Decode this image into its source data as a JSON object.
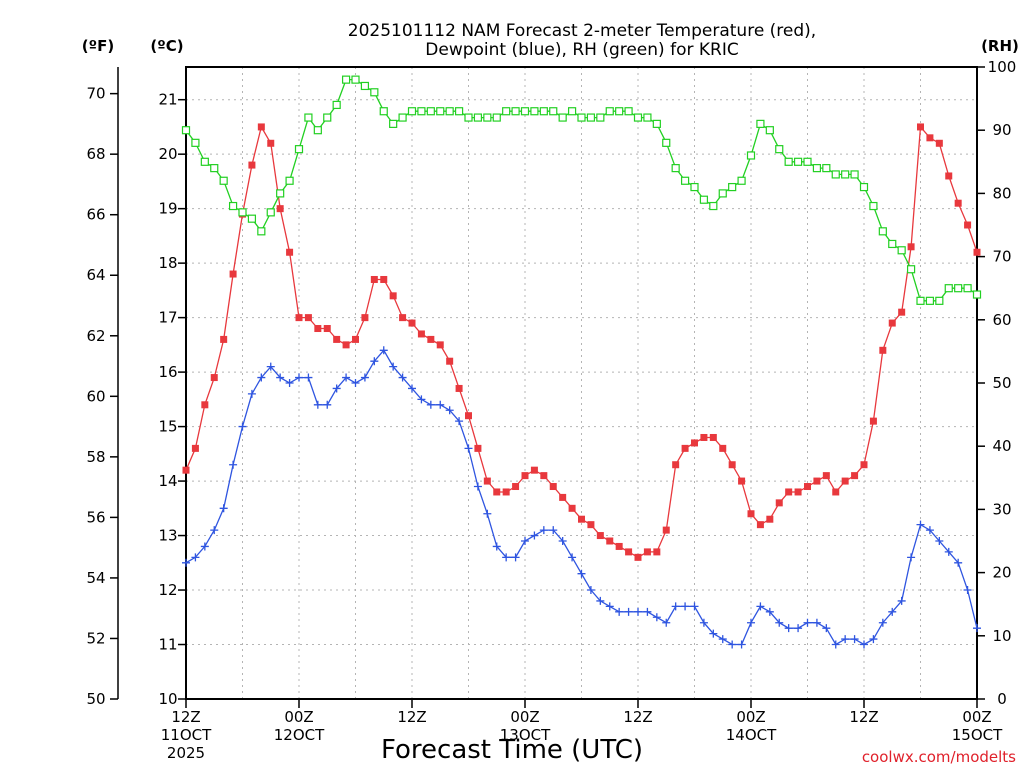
{
  "chart_data": {
    "type": "line",
    "title_lines": [
      "2025101112 NAM Forecast 2-meter Temperature (red),",
      "Dewpoint (blue), RH (green) for KRIC"
    ],
    "xlabel": "Forecast Time (UTC)",
    "credit": "coolwx.com/modelts",
    "units": {
      "f": "(ºF)",
      "c": "(ºC)",
      "rh": "(RH)"
    },
    "x_range_hours": [
      0,
      84
    ],
    "x_ticks": [
      {
        "hour": 0,
        "lines": [
          "12Z",
          "11OCT",
          "2025"
        ]
      },
      {
        "hour": 12,
        "lines": [
          "00Z",
          "12OCT"
        ]
      },
      {
        "hour": 24,
        "lines": [
          "12Z"
        ]
      },
      {
        "hour": 36,
        "lines": [
          "00Z",
          "13OCT"
        ]
      },
      {
        "hour": 48,
        "lines": [
          "12Z"
        ]
      },
      {
        "hour": 60,
        "lines": [
          "00Z",
          "14OCT"
        ]
      },
      {
        "hour": 72,
        "lines": [
          "12Z"
        ]
      },
      {
        "hour": 84,
        "lines": [
          "00Z",
          "15OCT"
        ]
      }
    ],
    "ylim_c": [
      10,
      21.6
    ],
    "yticks_c": [
      10,
      11,
      12,
      13,
      14,
      15,
      16,
      17,
      18,
      19,
      20,
      21
    ],
    "yticks_f": [
      50,
      52,
      54,
      56,
      58,
      60,
      62,
      64,
      66,
      68,
      70
    ],
    "ylim_rh": [
      0,
      100
    ],
    "yticks_rh": [
      0,
      10,
      20,
      30,
      40,
      50,
      60,
      70,
      80,
      90,
      100
    ],
    "series": [
      {
        "name": "2-meter Temperature",
        "color": "#e8383d",
        "marker": "filled-square",
        "unit": "C",
        "values": [
          14.2,
          14.6,
          15.4,
          15.9,
          16.6,
          17.8,
          18.9,
          19.8,
          20.5,
          20.2,
          19.0,
          18.2,
          17.0,
          17.0,
          16.8,
          16.8,
          16.6,
          16.5,
          16.6,
          17.0,
          17.7,
          17.7,
          17.4,
          17.0,
          16.9,
          16.7,
          16.6,
          16.5,
          16.2,
          15.7,
          15.2,
          14.6,
          14.0,
          13.8,
          13.8,
          13.9,
          14.1,
          14.2,
          14.1,
          13.9,
          13.7,
          13.5,
          13.3,
          13.2,
          13.0,
          12.9,
          12.8,
          12.7,
          12.6,
          12.7,
          12.7,
          13.1,
          14.3,
          14.6,
          14.7,
          14.8,
          14.8,
          14.6,
          14.3,
          14.0,
          13.4,
          13.2,
          13.3,
          13.6,
          13.8,
          13.8,
          13.9,
          14.0,
          14.1,
          13.8,
          14.0,
          14.1,
          14.3,
          15.1,
          16.4,
          16.9,
          17.1,
          18.3,
          20.5,
          20.3,
          20.2,
          19.6,
          19.1,
          18.7,
          18.2
        ]
      },
      {
        "name": "Dewpoint",
        "color": "#2f55e0",
        "marker": "plus",
        "unit": "C",
        "values": [
          12.5,
          12.6,
          12.8,
          13.1,
          13.5,
          14.3,
          15.0,
          15.6,
          15.9,
          16.1,
          15.9,
          15.8,
          15.9,
          15.9,
          15.4,
          15.4,
          15.7,
          15.9,
          15.8,
          15.9,
          16.2,
          16.4,
          16.1,
          15.9,
          15.7,
          15.5,
          15.4,
          15.4,
          15.3,
          15.1,
          14.6,
          13.9,
          13.4,
          12.8,
          12.6,
          12.6,
          12.9,
          13.0,
          13.1,
          13.1,
          12.9,
          12.6,
          12.3,
          12.0,
          11.8,
          11.7,
          11.6,
          11.6,
          11.6,
          11.6,
          11.5,
          11.4,
          11.7,
          11.7,
          11.7,
          11.4,
          11.2,
          11.1,
          11.0,
          11.0,
          11.4,
          11.7,
          11.6,
          11.4,
          11.3,
          11.3,
          11.4,
          11.4,
          11.3,
          11.0,
          11.1,
          11.1,
          11.0,
          11.1,
          11.4,
          11.6,
          11.8,
          12.6,
          13.2,
          13.1,
          12.9,
          12.7,
          12.5,
          12.0,
          11.3
        ]
      },
      {
        "name": "RH",
        "color": "#22d022",
        "marker": "open-square",
        "unit": "%",
        "values": [
          90,
          88,
          85,
          84,
          82,
          78,
          77,
          76,
          74,
          77,
          80,
          82,
          87,
          92,
          90,
          92,
          94,
          98,
          98,
          97,
          96,
          93,
          91,
          92,
          93,
          93,
          93,
          93,
          93,
          93,
          92,
          92,
          92,
          92,
          93,
          93,
          93,
          93,
          93,
          93,
          92,
          93,
          92,
          92,
          92,
          93,
          93,
          93,
          92,
          92,
          91,
          88,
          84,
          82,
          81,
          79,
          78,
          80,
          81,
          82,
          86,
          91,
          90,
          87,
          85,
          85,
          85,
          84,
          84,
          83,
          83,
          83,
          81,
          78,
          74,
          72,
          71,
          68,
          63,
          63,
          63,
          65,
          65,
          65,
          64
        ]
      }
    ]
  }
}
